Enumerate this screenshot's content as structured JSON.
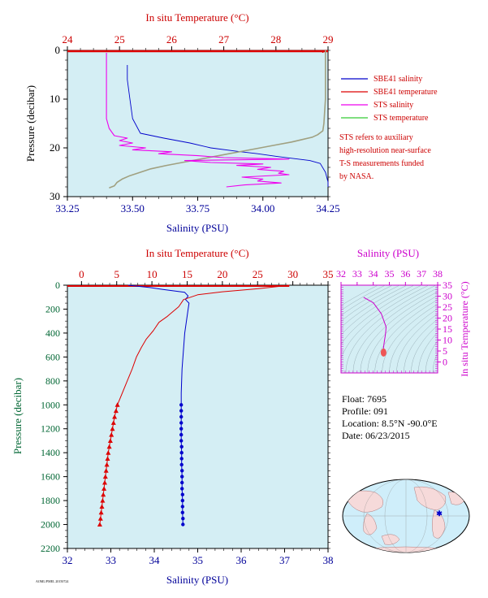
{
  "colors": {
    "salinity": "#0000cc",
    "temperature": "#dd0000",
    "sts_salinity": "#ee00ee",
    "sts_temperature": "#a0a080",
    "sts_temperature_legend": "#33cc33",
    "plot_bg": "#d4eef4",
    "inset_axis": "#cc00cc",
    "pressure_label": "#006633",
    "salinity_label": "#000099"
  },
  "legend": {
    "items": [
      {
        "label": "SBE41 salinity",
        "color": "#0000cc"
      },
      {
        "label": "SBE41 temperature",
        "color": "#dd0000"
      },
      {
        "label": "STS salinity",
        "color": "#ee00ee"
      },
      {
        "label": "STS temperature",
        "color": "#33cc33"
      }
    ],
    "note": [
      "STS refers to auxiliary",
      "high-resolution near-surface",
      "T-S measurements funded",
      "by NASA."
    ]
  },
  "info": {
    "float": "Float:  7695",
    "profile": "Profile:  091",
    "location": "Location:  8.5°N  -90.0°E",
    "date": "Date:  06/23/2015"
  },
  "footer_code": "AOML/PMEL 20150724",
  "chart_data": [
    {
      "type": "line",
      "panel": "near-surface",
      "title": "",
      "top_axis_label": "In situ Temperature (°C)",
      "bottom_axis_label": "Salinity (PSU)",
      "left_axis_label": "Pressure (decibar)",
      "temperature_lim": [
        24,
        29
      ],
      "salinity_lim": [
        33.25,
        34.25
      ],
      "pressure_lim": [
        30,
        0
      ],
      "temperature_ticks": [
        "24",
        "25",
        "26",
        "27",
        "28",
        "29"
      ],
      "salinity_ticks": [
        "33.25",
        "33.50",
        "33.75",
        "34.00",
        "34.25"
      ],
      "pressure_ticks": [
        "0",
        "10",
        "20",
        "30"
      ],
      "grid": false,
      "series": [
        {
          "name": "SBE41 salinity",
          "axis": "salinity",
          "points": [
            [
              33.48,
              3
            ],
            [
              33.48,
              6
            ],
            [
              33.49,
              10
            ],
            [
              33.5,
              14
            ],
            [
              33.53,
              17
            ],
            [
              33.62,
              18
            ],
            [
              33.72,
              19
            ],
            [
              33.8,
              20
            ],
            [
              33.9,
              20.7
            ],
            [
              33.98,
              21.2
            ],
            [
              34.06,
              21.8
            ],
            [
              34.12,
              22.2
            ],
            [
              34.18,
              22.6
            ],
            [
              34.22,
              23.2
            ],
            [
              34.24,
              25
            ],
            [
              34.25,
              27
            ],
            [
              34.25,
              28
            ]
          ]
        },
        {
          "name": "SBE41 temperature",
          "axis": "temperature",
          "points": [
            [
              28.9,
              0.1
            ],
            [
              28.9,
              0.5
            ]
          ]
        },
        {
          "name": "STS salinity",
          "axis": "salinity",
          "points": [
            [
              33.4,
              0.5
            ],
            [
              33.4,
              1
            ],
            [
              33.4,
              5
            ],
            [
              33.4,
              10
            ],
            [
              33.4,
              14
            ],
            [
              33.41,
              16
            ],
            [
              33.43,
              17.5
            ],
            [
              33.48,
              18
            ],
            [
              33.45,
              18.5
            ],
            [
              33.5,
              19
            ],
            [
              33.45,
              19.5
            ],
            [
              33.55,
              20
            ],
            [
              33.5,
              20.4
            ],
            [
              33.65,
              20.8
            ],
            [
              33.6,
              21.2
            ],
            [
              33.75,
              21.6
            ],
            [
              33.85,
              22
            ],
            [
              34.1,
              22.3
            ],
            [
              33.7,
              22.6
            ],
            [
              33.8,
              23
            ],
            [
              34.0,
              23.3
            ],
            [
              33.9,
              23.6
            ],
            [
              34.03,
              24
            ],
            [
              33.98,
              24.4
            ],
            [
              34.08,
              24.8
            ],
            [
              34.06,
              25.2
            ],
            [
              34.1,
              25.5
            ],
            [
              33.92,
              26
            ],
            [
              34.0,
              26.4
            ],
            [
              33.98,
              26.8
            ],
            [
              34.07,
              27.2
            ],
            [
              33.93,
              27.6
            ],
            [
              33.86,
              28
            ]
          ]
        },
        {
          "name": "STS temperature",
          "axis": "temperature",
          "points": [
            [
              28.95,
              0
            ],
            [
              28.95,
              5
            ],
            [
              28.95,
              10
            ],
            [
              28.92,
              15
            ],
            [
              28.9,
              16.5
            ],
            [
              28.8,
              17.3
            ],
            [
              28.7,
              17.8
            ],
            [
              28.5,
              18.3
            ],
            [
              28.3,
              18.8
            ],
            [
              28.0,
              19.4
            ],
            [
              27.7,
              20
            ],
            [
              27.4,
              20.6
            ],
            [
              27.1,
              21.2
            ],
            [
              26.8,
              21.8
            ],
            [
              26.5,
              22.4
            ],
            [
              26.2,
              23.0
            ],
            [
              25.9,
              23.6
            ],
            [
              25.6,
              24.3
            ],
            [
              25.4,
              25
            ],
            [
              25.2,
              25.7
            ],
            [
              25.05,
              26.4
            ],
            [
              24.95,
              27.1
            ],
            [
              24.9,
              27.8
            ],
            [
              24.8,
              28.2
            ]
          ]
        }
      ]
    },
    {
      "type": "line",
      "panel": "full-depth",
      "title": "",
      "top_axis_label": "In situ Temperature (°C)",
      "bottom_axis_label": "Salinity (PSU)",
      "left_axis_label": "Pressure (decibar)",
      "temperature_lim": [
        -2,
        35
      ],
      "salinity_lim": [
        32,
        38
      ],
      "pressure_lim": [
        2200,
        0
      ],
      "temperature_ticks": [
        "0",
        "5",
        "10",
        "15",
        "20",
        "25",
        "30",
        "35"
      ],
      "salinity_ticks": [
        "32",
        "33",
        "34",
        "35",
        "36",
        "37",
        "38"
      ],
      "pressure_ticks": [
        "0",
        "200",
        "400",
        "600",
        "800",
        "1000",
        "1200",
        "1400",
        "1600",
        "1800",
        "2000",
        "2200"
      ],
      "grid": false,
      "series": [
        {
          "name": "SBE41 salinity",
          "axis": "salinity",
          "points": [
            [
              33.4,
              0
            ],
            [
              33.9,
              20
            ],
            [
              34.2,
              35
            ],
            [
              34.7,
              60
            ],
            [
              34.78,
              90
            ],
            [
              34.72,
              120
            ],
            [
              34.8,
              150
            ],
            [
              34.78,
              200
            ],
            [
              34.74,
              300
            ],
            [
              34.7,
              400
            ],
            [
              34.68,
              500
            ],
            [
              34.66,
              600
            ],
            [
              34.64,
              700
            ],
            [
              34.63,
              800
            ],
            [
              34.62,
              900
            ],
            [
              34.62,
              1000
            ],
            [
              34.62,
              1100
            ],
            [
              34.62,
              1200
            ],
            [
              34.62,
              1300
            ],
            [
              34.63,
              1400
            ],
            [
              34.63,
              1500
            ],
            [
              34.64,
              1600
            ],
            [
              34.64,
              1700
            ],
            [
              34.65,
              1800
            ],
            [
              34.65,
              1900
            ],
            [
              34.66,
              2000
            ]
          ]
        },
        {
          "name": "SBE41 temperature",
          "axis": "temperature",
          "points": [
            [
              29.5,
              0
            ],
            [
              28.0,
              10
            ],
            [
              25.0,
              30
            ],
            [
              20.0,
              55
            ],
            [
              16.5,
              80
            ],
            [
              14.5,
              120
            ],
            [
              13.8,
              180
            ],
            [
              13.0,
              220
            ],
            [
              12.2,
              260
            ],
            [
              11.0,
              310
            ],
            [
              10.2,
              380
            ],
            [
              9.2,
              450
            ],
            [
              8.5,
              520
            ],
            [
              7.8,
              600
            ],
            [
              7.2,
              700
            ],
            [
              6.5,
              800
            ],
            [
              5.8,
              900
            ],
            [
              5.1,
              1000
            ],
            [
              4.7,
              1100
            ],
            [
              4.4,
              1200
            ],
            [
              4.1,
              1300
            ],
            [
              3.8,
              1400
            ],
            [
              3.6,
              1500
            ],
            [
              3.4,
              1600
            ],
            [
              3.2,
              1700
            ],
            [
              3.0,
              1800
            ],
            [
              2.8,
              1900
            ],
            [
              2.6,
              2000
            ]
          ]
        }
      ],
      "marker_series": [
        {
          "name": "SBE41 salinity (deep samples)",
          "axis": "salinity",
          "marker": "circle",
          "points": [
            [
              34.62,
              1000
            ],
            [
              34.62,
              1050
            ],
            [
              34.62,
              1100
            ],
            [
              34.62,
              1150
            ],
            [
              34.62,
              1200
            ],
            [
              34.62,
              1250
            ],
            [
              34.62,
              1300
            ],
            [
              34.63,
              1350
            ],
            [
              34.63,
              1400
            ],
            [
              34.63,
              1450
            ],
            [
              34.63,
              1500
            ],
            [
              34.64,
              1550
            ],
            [
              34.64,
              1600
            ],
            [
              34.64,
              1650
            ],
            [
              34.64,
              1700
            ],
            [
              34.65,
              1750
            ],
            [
              34.65,
              1800
            ],
            [
              34.65,
              1850
            ],
            [
              34.65,
              1900
            ],
            [
              34.66,
              1950
            ],
            [
              34.66,
              2000
            ]
          ]
        },
        {
          "name": "SBE41 temperature (deep samples)",
          "axis": "temperature",
          "marker": "triangle",
          "points": [
            [
              5.1,
              1000
            ],
            [
              4.9,
              1050
            ],
            [
              4.7,
              1100
            ],
            [
              4.55,
              1150
            ],
            [
              4.4,
              1200
            ],
            [
              4.25,
              1250
            ],
            [
              4.1,
              1300
            ],
            [
              3.95,
              1350
            ],
            [
              3.8,
              1400
            ],
            [
              3.7,
              1450
            ],
            [
              3.6,
              1500
            ],
            [
              3.5,
              1550
            ],
            [
              3.4,
              1600
            ],
            [
              3.3,
              1650
            ],
            [
              3.2,
              1700
            ],
            [
              3.1,
              1750
            ],
            [
              3.0,
              1800
            ],
            [
              2.9,
              1850
            ],
            [
              2.8,
              1900
            ],
            [
              2.7,
              1950
            ],
            [
              2.6,
              2000
            ]
          ]
        }
      ]
    },
    {
      "type": "scatter",
      "panel": "T-S inset",
      "title": "",
      "top_axis_label": "Salinity (PSU)",
      "right_axis_label": "In situ Temperature (°C)",
      "salinity_lim": [
        32,
        38
      ],
      "temperature_lim": [
        -5,
        35
      ],
      "salinity_ticks": [
        "32",
        "33",
        "34",
        "35",
        "36",
        "37",
        "38"
      ],
      "temperature_ticks": [
        "0",
        "5",
        "10",
        "15",
        "20",
        "25",
        "30",
        "35"
      ],
      "series": [
        {
          "name": "SBE41 T-S",
          "points": [
            [
              33.4,
              29.5
            ],
            [
              34.0,
              27
            ],
            [
              34.5,
              22
            ],
            [
              34.8,
              16
            ],
            [
              34.78,
              14
            ],
            [
              34.75,
              12
            ],
            [
              34.7,
              10
            ],
            [
              34.66,
              8
            ],
            [
              34.63,
              6
            ],
            [
              34.62,
              5
            ],
            [
              34.64,
              4
            ],
            [
              34.66,
              3
            ]
          ]
        }
      ]
    }
  ]
}
